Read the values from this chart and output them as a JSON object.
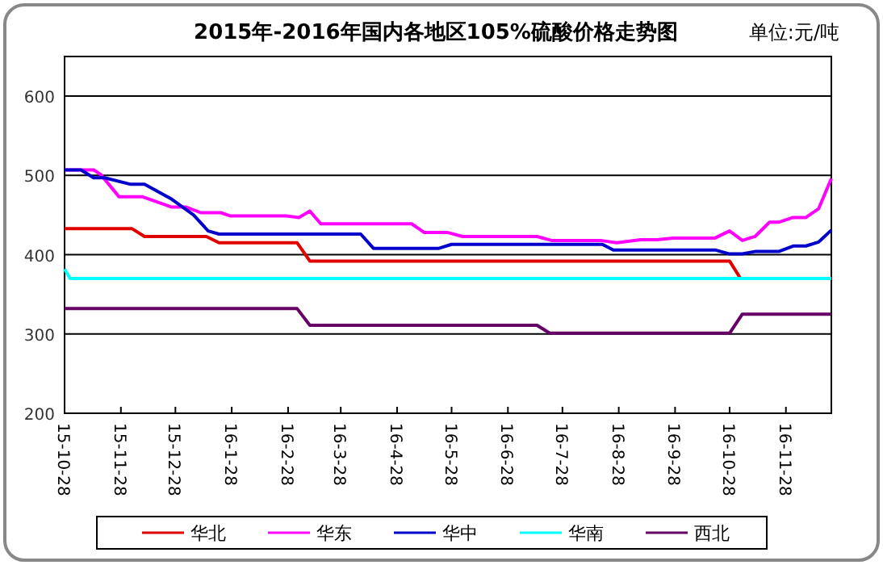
{
  "chart_data": {
    "type": "line",
    "title": "2015年-2016年国内各地区105%硫酸价格走势图",
    "annotations": [
      "单位:元/吨"
    ],
    "xlim": [
      "2015-10-28",
      "2016-12-23"
    ],
    "xticks": [
      {
        "value": "2015-10-28",
        "label": "15-10-28"
      },
      {
        "value": "2015-11-28",
        "label": "15-11-28"
      },
      {
        "value": "2015-12-28",
        "label": "15-12-28"
      },
      {
        "value": "2016-01-28",
        "label": "16-1-28"
      },
      {
        "value": "2016-02-28",
        "label": "16-2-28"
      },
      {
        "value": "2016-03-28",
        "label": "16-3-28"
      },
      {
        "value": "2016-04-28",
        "label": "16-4-28"
      },
      {
        "value": "2016-05-28",
        "label": "16-5-28"
      },
      {
        "value": "2016-06-28",
        "label": "16-6-28"
      },
      {
        "value": "2016-07-28",
        "label": "16-7-28"
      },
      {
        "value": "2016-08-28",
        "label": "16-8-28"
      },
      {
        "value": "2016-09-28",
        "label": "16-9-28"
      },
      {
        "value": "2016-10-28",
        "label": "16-10-28"
      },
      {
        "value": "2016-11-28",
        "label": "16-11-28"
      }
    ],
    "ylim": [
      200,
      650
    ],
    "yticks": [
      200,
      300,
      400,
      500,
      600
    ],
    "grid": "y",
    "legend": "bottom",
    "line_style": "solid",
    "series": [
      {
        "name": "华北",
        "color": "#e00000",
        "x": [
          "2015-10-28",
          "2015-12-04",
          "2015-12-11",
          "2016-01-14",
          "2016-01-21",
          "2016-03-04",
          "2016-03-11",
          "2016-10-28",
          "2016-11-03"
        ],
        "values": [
          433,
          433,
          423,
          423,
          415,
          415,
          392,
          392,
          370
        ]
      },
      {
        "name": "华东",
        "color": "#ff00ff",
        "x": [
          "2015-10-28",
          "2015-11-13",
          "2015-11-17",
          "2015-11-27",
          "2015-12-10",
          "2015-12-26",
          "2016-01-03",
          "2016-01-11",
          "2016-01-22",
          "2016-01-27",
          "2016-02-27",
          "2016-03-05",
          "2016-03-11",
          "2016-03-17",
          "2016-05-06",
          "2016-05-13",
          "2016-05-26",
          "2016-06-03",
          "2016-07-14",
          "2016-07-22",
          "2016-08-18",
          "2016-08-27",
          "2016-09-09",
          "2016-09-18",
          "2016-09-27",
          "2016-10-20",
          "2016-10-28",
          "2016-11-04",
          "2016-11-11",
          "2016-11-19",
          "2016-11-24",
          "2016-12-02",
          "2016-12-09",
          "2016-12-16",
          "2016-12-23"
        ],
        "values": [
          507,
          507,
          501,
          473,
          473,
          460,
          460,
          453,
          453,
          449,
          449,
          447,
          455,
          439,
          439,
          428,
          428,
          423,
          423,
          418,
          418,
          415,
          419,
          419,
          421,
          421,
          430,
          418,
          423,
          441,
          441,
          447,
          447,
          458,
          496
        ]
      },
      {
        "name": "华中",
        "color": "#0000cc",
        "x": [
          "2015-10-28",
          "2015-11-06",
          "2015-11-13",
          "2015-11-19",
          "2015-12-03",
          "2015-12-11",
          "2015-12-26",
          "2016-01-07",
          "2016-01-15",
          "2016-01-21",
          "2016-04-08",
          "2016-04-15",
          "2016-05-21",
          "2016-05-28",
          "2016-08-19",
          "2016-08-25",
          "2016-10-20",
          "2016-10-28",
          "2016-11-04",
          "2016-11-11",
          "2016-11-24",
          "2016-12-02",
          "2016-12-09",
          "2016-12-16",
          "2016-12-23"
        ],
        "values": [
          507,
          507,
          497,
          497,
          489,
          489,
          470,
          450,
          430,
          426,
          426,
          408,
          408,
          413,
          413,
          406,
          406,
          401,
          401,
          404,
          404,
          411,
          411,
          416,
          431
        ]
      },
      {
        "name": "华南",
        "color": "#00ffff",
        "x": [
          "2015-10-28",
          "2015-10-31",
          "2016-12-23"
        ],
        "values": [
          382,
          370,
          370
        ]
      },
      {
        "name": "西北",
        "color": "#660066",
        "x": [
          "2015-10-28",
          "2016-03-04",
          "2016-03-11",
          "2016-07-14",
          "2016-07-21",
          "2016-10-28",
          "2016-11-04",
          "2016-12-23"
        ],
        "values": [
          332,
          332,
          311,
          311,
          301,
          301,
          325,
          325
        ]
      }
    ]
  }
}
